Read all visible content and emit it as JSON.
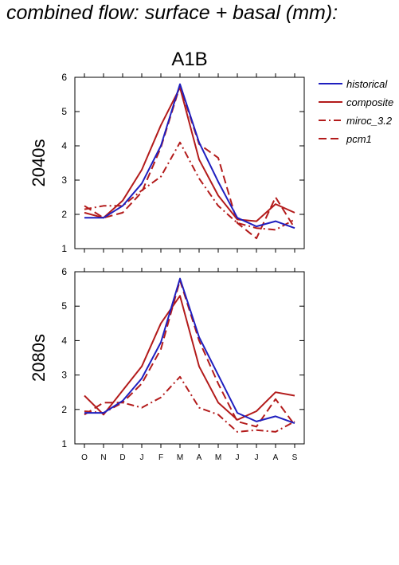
{
  "figure_title": "combined flow: surface + basal (mm):",
  "scenario": "A1B",
  "legend": [
    {
      "name": "historical",
      "color": "#1f1fbf",
      "dash": "solid"
    },
    {
      "name": "composite",
      "color": "#b31b1b",
      "dash": "solid"
    },
    {
      "name": "miroc_3.2",
      "color": "#b31b1b",
      "dash": "dashdot"
    },
    {
      "name": "pcm1",
      "color": "#b31b1b",
      "dash": "dashed"
    }
  ],
  "chart_data": [
    {
      "type": "line",
      "panel_label": "2040s",
      "categories": [
        "O",
        "N",
        "D",
        "J",
        "F",
        "M",
        "A",
        "M",
        "J",
        "J",
        "A",
        "S"
      ],
      "ylim": [
        1,
        6
      ],
      "yticks": [
        "1",
        "2",
        "3",
        "4",
        "5",
        "6"
      ],
      "series": [
        {
          "name": "historical",
          "values": [
            1.9,
            1.9,
            2.25,
            2.9,
            4.0,
            5.8,
            4.1,
            2.95,
            1.9,
            1.65,
            1.8,
            1.6
          ]
        },
        {
          "name": "composite",
          "values": [
            2.05,
            1.9,
            2.4,
            3.3,
            4.6,
            5.7,
            3.6,
            2.55,
            1.85,
            1.8,
            2.3,
            2.05
          ]
        },
        {
          "name": "miroc_3.2",
          "values": [
            2.15,
            2.25,
            2.25,
            2.7,
            3.1,
            4.1,
            3.05,
            2.25,
            1.75,
            1.6,
            1.55,
            1.85
          ]
        },
        {
          "name": "pcm1",
          "values": [
            2.25,
            1.9,
            2.05,
            2.65,
            3.95,
            5.75,
            4.05,
            3.65,
            1.75,
            1.3,
            2.5,
            1.6
          ]
        }
      ]
    },
    {
      "type": "line",
      "panel_label": "2080s",
      "categories": [
        "O",
        "N",
        "D",
        "J",
        "F",
        "M",
        "A",
        "M",
        "J",
        "J",
        "A",
        "S"
      ],
      "ylim": [
        1,
        6
      ],
      "yticks": [
        "1",
        "2",
        "3",
        "4",
        "5",
        "6"
      ],
      "series": [
        {
          "name": "historical",
          "values": [
            1.9,
            1.9,
            2.25,
            2.9,
            3.95,
            5.8,
            4.1,
            3.0,
            1.9,
            1.65,
            1.8,
            1.6
          ]
        },
        {
          "name": "composite",
          "values": [
            2.4,
            1.85,
            2.55,
            3.25,
            4.5,
            5.3,
            3.25,
            2.2,
            1.7,
            1.95,
            2.5,
            2.4
          ]
        },
        {
          "name": "miroc_3.2",
          "values": [
            1.95,
            1.9,
            2.2,
            2.05,
            2.35,
            2.95,
            2.05,
            1.85,
            1.35,
            1.4,
            1.35,
            1.65
          ]
        },
        {
          "name": "pcm1",
          "values": [
            1.85,
            2.2,
            2.2,
            2.75,
            3.75,
            5.75,
            4.0,
            2.75,
            1.65,
            1.5,
            2.3,
            1.55
          ]
        }
      ]
    }
  ]
}
